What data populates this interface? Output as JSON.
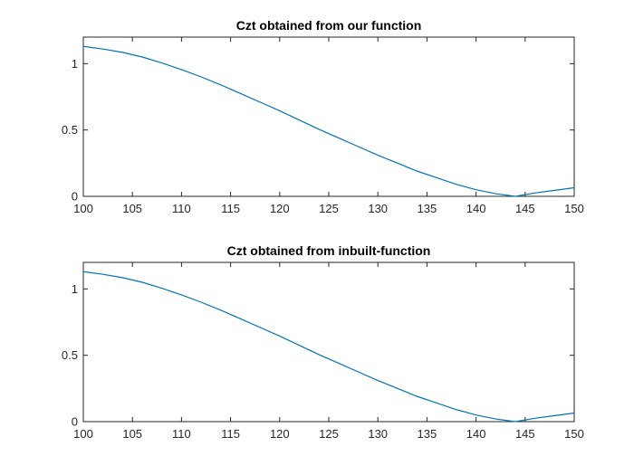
{
  "chart_data": [
    {
      "type": "line",
      "title": "Czt obtained from our function",
      "xlabel": "",
      "ylabel": "",
      "xlim": [
        100,
        150
      ],
      "ylim": [
        0,
        1.2
      ],
      "xticks": [
        100,
        105,
        110,
        115,
        120,
        125,
        130,
        135,
        140,
        145,
        150
      ],
      "xtick_labels": [
        "100",
        "105",
        "110",
        "115",
        "120",
        "125",
        "130",
        "135",
        "140",
        "145",
        "150"
      ],
      "yticks": [
        0,
        0.5,
        1
      ],
      "ytick_labels": [
        "0",
        "0.5",
        "1"
      ],
      "grid": false,
      "series": [
        {
          "color": "#0072BD",
          "x": [
            100,
            102,
            104,
            106,
            108,
            110,
            112,
            114,
            116,
            118,
            120,
            122,
            124,
            126,
            128,
            130,
            132,
            134,
            136,
            138,
            140,
            142,
            144,
            146,
            148,
            150
          ],
          "y": [
            1.13,
            1.11,
            1.085,
            1.05,
            1.005,
            0.955,
            0.9,
            0.84,
            0.775,
            0.71,
            0.645,
            0.575,
            0.505,
            0.44,
            0.375,
            0.31,
            0.25,
            0.19,
            0.14,
            0.09,
            0.05,
            0.02,
            0.0,
            0.025,
            0.045,
            0.065
          ]
        }
      ]
    },
    {
      "type": "line",
      "title": "Czt obtained from inbuilt-function",
      "xlabel": "",
      "ylabel": "",
      "xlim": [
        100,
        150
      ],
      "ylim": [
        0,
        1.2
      ],
      "xticks": [
        100,
        105,
        110,
        115,
        120,
        125,
        130,
        135,
        140,
        145,
        150
      ],
      "xtick_labels": [
        "100",
        "105",
        "110",
        "115",
        "120",
        "125",
        "130",
        "135",
        "140",
        "145",
        "150"
      ],
      "yticks": [
        0,
        0.5,
        1
      ],
      "ytick_labels": [
        "0",
        "0.5",
        "1"
      ],
      "grid": false,
      "series": [
        {
          "color": "#0072BD",
          "x": [
            100,
            102,
            104,
            106,
            108,
            110,
            112,
            114,
            116,
            118,
            120,
            122,
            124,
            126,
            128,
            130,
            132,
            134,
            136,
            138,
            140,
            142,
            144,
            146,
            148,
            150
          ],
          "y": [
            1.13,
            1.11,
            1.085,
            1.05,
            1.005,
            0.955,
            0.9,
            0.84,
            0.775,
            0.71,
            0.645,
            0.575,
            0.505,
            0.44,
            0.375,
            0.31,
            0.25,
            0.19,
            0.14,
            0.09,
            0.05,
            0.02,
            0.0,
            0.025,
            0.045,
            0.065
          ]
        }
      ]
    }
  ]
}
